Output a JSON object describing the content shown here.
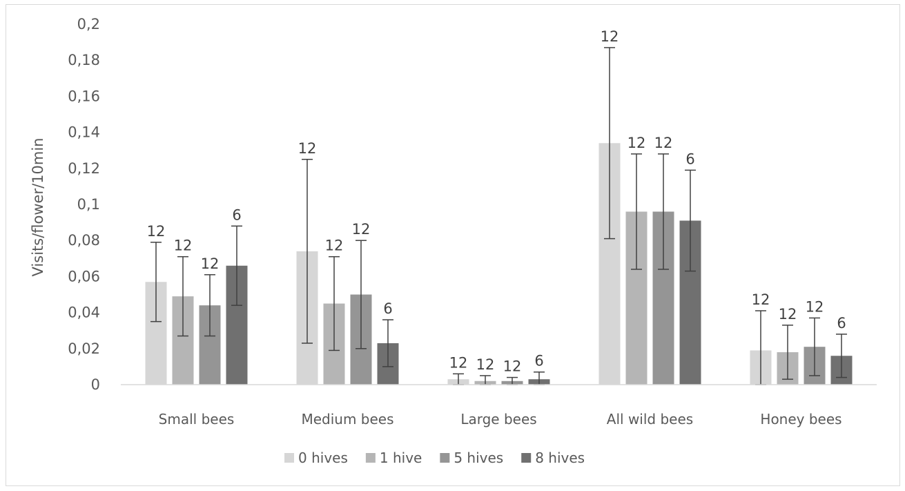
{
  "chart_data": {
    "type": "bar",
    "title": "",
    "xlabel": "",
    "ylabel": "Visits/flower/10min",
    "ylim": [
      0,
      0.2
    ],
    "yticks": [
      "0",
      "0,02",
      "0,04",
      "0,06",
      "0,08",
      "0,1",
      "0,12",
      "0,14",
      "0,16",
      "0,18",
      "0,2"
    ],
    "categories": [
      "Small bees",
      "Medium bees",
      "Large bees",
      "All wild bees",
      "Honey bees"
    ],
    "grid": false,
    "legend_position": "bottom",
    "series": [
      {
        "name": "0 hives",
        "color": "#d6d6d6",
        "values": [
          0.057,
          0.074,
          0.003,
          0.134,
          0.019
        ],
        "error": [
          0.022,
          0.051,
          0.003,
          0.053,
          0.022
        ],
        "labels": [
          "12",
          "12",
          "12",
          "12",
          "12"
        ]
      },
      {
        "name": "1 hive",
        "color": "#b5b5b5",
        "values": [
          0.049,
          0.045,
          0.002,
          0.096,
          0.018
        ],
        "error": [
          0.022,
          0.026,
          0.003,
          0.032,
          0.015
        ],
        "labels": [
          "12",
          "12",
          "12",
          "12",
          "12"
        ]
      },
      {
        "name": "5 hives",
        "color": "#959595",
        "values": [
          0.044,
          0.05,
          0.002,
          0.096,
          0.021
        ],
        "error": [
          0.017,
          0.03,
          0.002,
          0.032,
          0.016
        ],
        "labels": [
          "12",
          "12",
          "12",
          "12",
          "12"
        ]
      },
      {
        "name": "8 hives",
        "color": "#707070",
        "values": [
          0.066,
          0.023,
          0.003,
          0.091,
          0.016
        ],
        "error": [
          0.022,
          0.013,
          0.004,
          0.028,
          0.012
        ],
        "labels": [
          "6",
          "6",
          "6",
          "6",
          "6"
        ]
      }
    ]
  }
}
